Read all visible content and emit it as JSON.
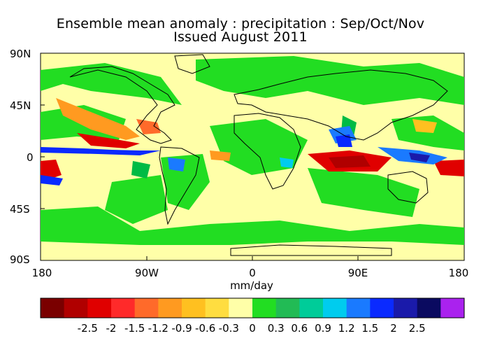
{
  "title": {
    "line1": "Ensemble mean anomaly : precipitation : Sep/Oct/Nov",
    "line2": "Issued August 2011"
  },
  "axes": {
    "lat_labels": [
      "90N",
      "45N",
      "0",
      "45S",
      "90S"
    ],
    "lon_labels": [
      "180",
      "90W",
      "0",
      "90E",
      "180"
    ],
    "units": "mm/day"
  },
  "colorbar": {
    "colors": [
      "#7a0000",
      "#b00000",
      "#e00000",
      "#ff2a2a",
      "#ff6a2a",
      "#ff9a20",
      "#ffc020",
      "#ffdd40",
      "#ffffa8",
      "#22dd22",
      "#22bb55",
      "#00cc99",
      "#00ccee",
      "#1a7aff",
      "#0a2aff",
      "#1a1aaa",
      "#0a0a60",
      "#aa22ee"
    ],
    "labels": [
      "-2.5",
      "-2",
      "-1.5",
      "-1.2",
      "-0.9",
      "-0.6",
      "-0.3",
      "0",
      "0.3",
      "0.6",
      "0.9",
      "1.2",
      "1.5",
      "2",
      "2.5"
    ]
  },
  "palette": {
    "positive_small": "#22dd22",
    "positive_mid": "#00bb44",
    "near_zero": "#ffffa8",
    "dry": "#ff2a2a",
    "very_wet": "#0a2aff",
    "land_outline": "#000000"
  }
}
